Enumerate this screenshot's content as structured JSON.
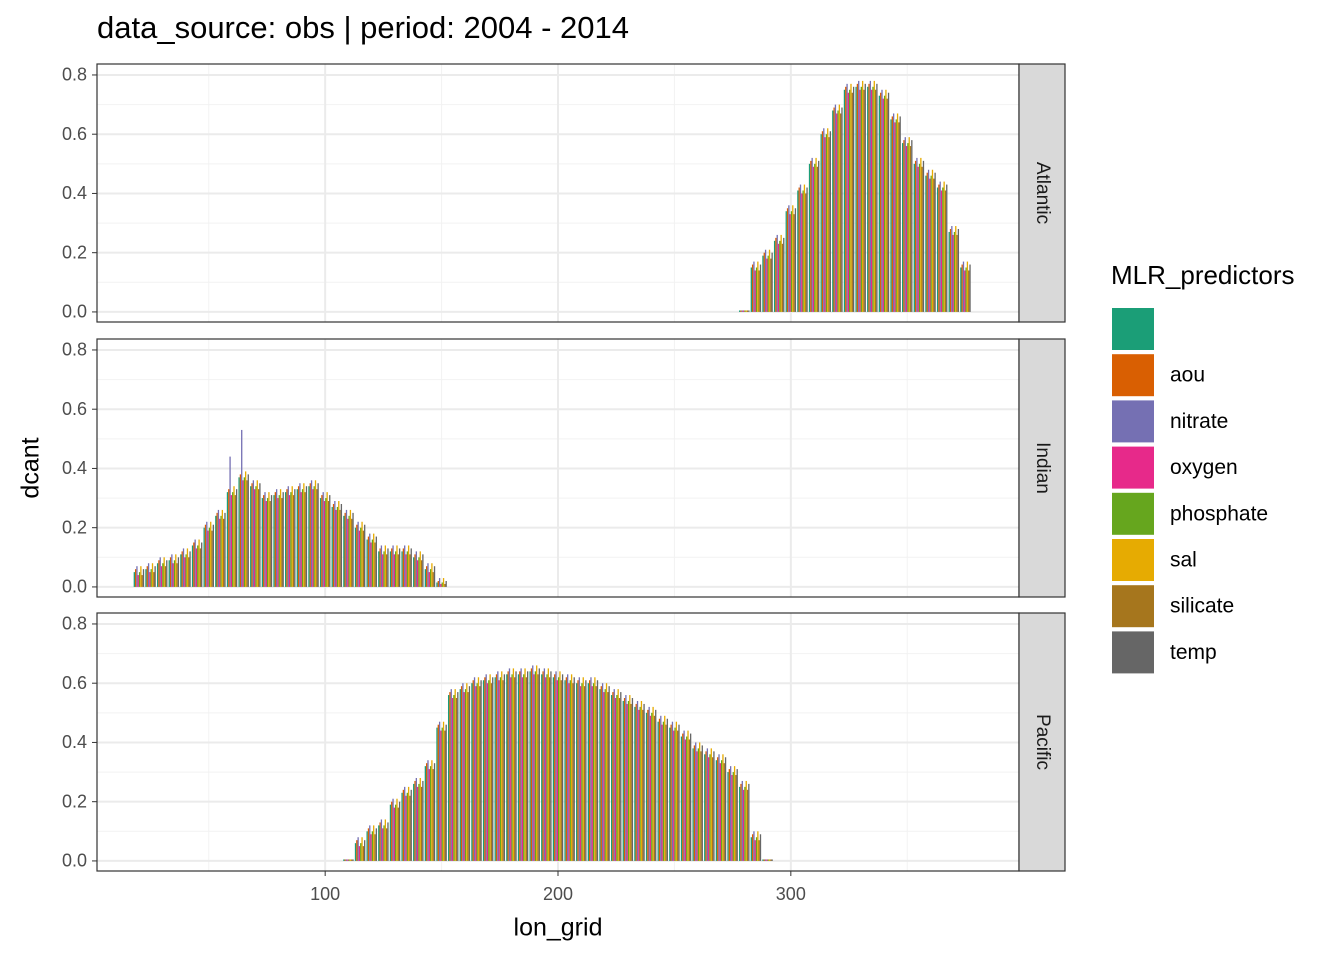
{
  "chart_data": {
    "type": "bar",
    "title": "data_source: obs | period: 2004 - 2014",
    "x_label": "lon_grid",
    "y_label": "dcant",
    "legend_title": "MLR_predictors",
    "xlim": [
      2,
      398
    ],
    "xticks": [
      100,
      200,
      300
    ],
    "ylim": [
      -0.034,
      0.837
    ],
    "yticks": [
      {
        "value": 0,
        "label": "0.0"
      },
      0.2,
      0.4,
      0.6,
      0.8
    ],
    "grid": true,
    "series": [
      {
        "name": null,
        "color": "#1b9e77"
      },
      {
        "name": "aou",
        "color": "#d95f02"
      },
      {
        "name": "nitrate",
        "color": "#7570b3"
      },
      {
        "name": "oxygen",
        "color": "#e7298a"
      },
      {
        "name": "phosphate",
        "color": "#66a61e"
      },
      {
        "name": "sal",
        "color": "#e6ab02"
      },
      {
        "name": "silicate",
        "color": "#a6761d"
      },
      {
        "name": "temp",
        "color": "#666666"
      }
    ],
    "facets": [
      {
        "label": "Atlantic",
        "x": [
          280,
          285,
          290,
          295,
          300,
          305,
          310,
          315,
          320,
          325,
          330,
          335,
          340,
          345,
          350,
          355,
          360,
          365,
          370,
          375
        ],
        "values": [
          [
            0.005,
            0.15,
            0.19,
            0.24,
            0.34,
            0.41,
            0.5,
            0.6,
            0.68,
            0.75,
            0.76,
            0.76,
            0.73,
            0.65,
            0.57,
            0.5,
            0.46,
            0.42,
            0.27,
            0.15
          ],
          [
            0.005,
            0.16,
            0.2,
            0.25,
            0.35,
            0.42,
            0.51,
            0.61,
            0.69,
            0.76,
            0.77,
            0.77,
            0.74,
            0.66,
            0.58,
            0.51,
            0.47,
            0.43,
            0.28,
            0.16
          ],
          [
            0.005,
            0.17,
            0.21,
            0.26,
            0.36,
            0.43,
            0.52,
            0.62,
            0.7,
            0.77,
            0.78,
            0.78,
            0.75,
            0.67,
            0.59,
            0.52,
            0.48,
            0.44,
            0.29,
            0.17
          ],
          [
            0.005,
            0.14,
            0.18,
            0.23,
            0.33,
            0.4,
            0.49,
            0.59,
            0.67,
            0.74,
            0.75,
            0.75,
            0.72,
            0.64,
            0.56,
            0.49,
            0.45,
            0.41,
            0.26,
            0.14
          ],
          [
            0.005,
            0.15,
            0.19,
            0.24,
            0.34,
            0.41,
            0.5,
            0.6,
            0.68,
            0.75,
            0.76,
            0.76,
            0.73,
            0.65,
            0.57,
            0.5,
            0.46,
            0.42,
            0.27,
            0.15
          ],
          [
            0.005,
            0.17,
            0.21,
            0.26,
            0.36,
            0.43,
            0.52,
            0.62,
            0.7,
            0.77,
            0.78,
            0.78,
            0.75,
            0.67,
            0.59,
            0.52,
            0.48,
            0.44,
            0.29,
            0.17
          ],
          [
            0.005,
            0.14,
            0.18,
            0.23,
            0.33,
            0.4,
            0.49,
            0.59,
            0.67,
            0.74,
            0.75,
            0.75,
            0.72,
            0.64,
            0.56,
            0.49,
            0.45,
            0.41,
            0.26,
            0.14
          ],
          [
            0.005,
            0.16,
            0.2,
            0.25,
            0.35,
            0.42,
            0.51,
            0.61,
            0.69,
            0.76,
            0.77,
            0.77,
            0.74,
            0.66,
            0.58,
            0.51,
            0.47,
            0.43,
            0.28,
            0.16
          ]
        ]
      },
      {
        "label": "Indian",
        "x": [
          20,
          25,
          30,
          35,
          40,
          45,
          50,
          55,
          60,
          65,
          70,
          75,
          80,
          85,
          90,
          95,
          100,
          105,
          110,
          115,
          120,
          125,
          130,
          135,
          140,
          145,
          150
        ],
        "values": [
          [
            0.05,
            0.06,
            0.08,
            0.09,
            0.11,
            0.14,
            0.2,
            0.24,
            0.32,
            0.37,
            0.34,
            0.3,
            0.31,
            0.32,
            0.33,
            0.34,
            0.3,
            0.27,
            0.24,
            0.2,
            0.16,
            0.12,
            0.12,
            0.12,
            0.1,
            0.06,
            0.015
          ],
          [
            0.06,
            0.07,
            0.09,
            0.1,
            0.12,
            0.15,
            0.21,
            0.25,
            0.33,
            0.38,
            0.35,
            0.31,
            0.32,
            0.33,
            0.34,
            0.35,
            0.31,
            0.28,
            0.25,
            0.21,
            0.17,
            0.13,
            0.13,
            0.13,
            0.11,
            0.07,
            0.02
          ],
          [
            0.07,
            0.08,
            0.1,
            0.11,
            0.13,
            0.16,
            0.22,
            0.26,
            0.44,
            0.53,
            0.36,
            0.32,
            0.33,
            0.34,
            0.35,
            0.36,
            0.32,
            0.29,
            0.26,
            0.22,
            0.18,
            0.14,
            0.14,
            0.14,
            0.12,
            0.08,
            0.03
          ],
          [
            0.04,
            0.05,
            0.07,
            0.08,
            0.1,
            0.13,
            0.19,
            0.23,
            0.31,
            0.36,
            0.33,
            0.29,
            0.3,
            0.31,
            0.32,
            0.33,
            0.29,
            0.26,
            0.23,
            0.19,
            0.15,
            0.11,
            0.11,
            0.11,
            0.09,
            0.05,
            0.01
          ],
          [
            0.05,
            0.06,
            0.08,
            0.09,
            0.11,
            0.14,
            0.2,
            0.24,
            0.32,
            0.37,
            0.34,
            0.3,
            0.31,
            0.32,
            0.33,
            0.34,
            0.3,
            0.27,
            0.24,
            0.2,
            0.16,
            0.12,
            0.12,
            0.12,
            0.1,
            0.06,
            0.015
          ],
          [
            0.07,
            0.08,
            0.1,
            0.11,
            0.13,
            0.16,
            0.22,
            0.26,
            0.34,
            0.39,
            0.36,
            0.32,
            0.33,
            0.34,
            0.35,
            0.36,
            0.32,
            0.29,
            0.26,
            0.22,
            0.18,
            0.14,
            0.14,
            0.14,
            0.12,
            0.08,
            0.03
          ],
          [
            0.04,
            0.05,
            0.07,
            0.08,
            0.1,
            0.13,
            0.19,
            0.23,
            0.31,
            0.36,
            0.33,
            0.29,
            0.3,
            0.31,
            0.32,
            0.33,
            0.29,
            0.26,
            0.23,
            0.19,
            0.15,
            0.11,
            0.11,
            0.11,
            0.09,
            0.05,
            0.01
          ],
          [
            0.06,
            0.07,
            0.09,
            0.1,
            0.12,
            0.15,
            0.21,
            0.25,
            0.33,
            0.38,
            0.35,
            0.31,
            0.32,
            0.33,
            0.34,
            0.35,
            0.31,
            0.28,
            0.25,
            0.21,
            0.17,
            0.13,
            0.13,
            0.13,
            0.11,
            0.07,
            0.02
          ]
        ]
      },
      {
        "label": "Pacific",
        "x": [
          110,
          115,
          120,
          125,
          130,
          135,
          140,
          145,
          150,
          155,
          160,
          165,
          170,
          175,
          180,
          185,
          190,
          195,
          200,
          205,
          210,
          215,
          220,
          225,
          230,
          235,
          240,
          245,
          250,
          255,
          260,
          265,
          270,
          275,
          280,
          285,
          290
        ],
        "values": [
          [
            0.005,
            0.06,
            0.1,
            0.12,
            0.19,
            0.23,
            0.26,
            0.32,
            0.45,
            0.56,
            0.58,
            0.6,
            0.61,
            0.62,
            0.63,
            0.63,
            0.64,
            0.63,
            0.62,
            0.61,
            0.6,
            0.6,
            0.58,
            0.56,
            0.54,
            0.52,
            0.5,
            0.47,
            0.45,
            0.42,
            0.38,
            0.36,
            0.34,
            0.3,
            0.25,
            0.08,
            0.005
          ],
          [
            0.005,
            0.07,
            0.11,
            0.13,
            0.2,
            0.24,
            0.27,
            0.33,
            0.46,
            0.57,
            0.59,
            0.61,
            0.62,
            0.63,
            0.64,
            0.64,
            0.65,
            0.64,
            0.63,
            0.62,
            0.61,
            0.61,
            0.59,
            0.57,
            0.55,
            0.53,
            0.51,
            0.48,
            0.46,
            0.43,
            0.39,
            0.37,
            0.35,
            0.31,
            0.26,
            0.09,
            0.005
          ],
          [
            0.005,
            0.08,
            0.12,
            0.14,
            0.21,
            0.25,
            0.28,
            0.34,
            0.47,
            0.58,
            0.6,
            0.62,
            0.63,
            0.64,
            0.65,
            0.65,
            0.66,
            0.65,
            0.64,
            0.63,
            0.62,
            0.62,
            0.6,
            0.58,
            0.56,
            0.54,
            0.52,
            0.49,
            0.47,
            0.44,
            0.4,
            0.38,
            0.36,
            0.32,
            0.27,
            0.1,
            0.005
          ],
          [
            0.005,
            0.05,
            0.09,
            0.11,
            0.18,
            0.22,
            0.25,
            0.31,
            0.44,
            0.55,
            0.57,
            0.59,
            0.6,
            0.61,
            0.62,
            0.62,
            0.63,
            0.62,
            0.61,
            0.6,
            0.59,
            0.59,
            0.57,
            0.55,
            0.53,
            0.51,
            0.49,
            0.46,
            0.44,
            0.41,
            0.37,
            0.35,
            0.33,
            0.29,
            0.24,
            0.07,
            0.005
          ],
          [
            0.005,
            0.06,
            0.1,
            0.12,
            0.19,
            0.23,
            0.26,
            0.32,
            0.45,
            0.56,
            0.58,
            0.6,
            0.61,
            0.62,
            0.63,
            0.63,
            0.64,
            0.63,
            0.62,
            0.61,
            0.6,
            0.6,
            0.58,
            0.56,
            0.54,
            0.52,
            0.5,
            0.47,
            0.45,
            0.42,
            0.38,
            0.36,
            0.34,
            0.3,
            0.25,
            0.08,
            0.005
          ],
          [
            0.005,
            0.08,
            0.12,
            0.14,
            0.21,
            0.25,
            0.28,
            0.34,
            0.47,
            0.58,
            0.6,
            0.62,
            0.63,
            0.64,
            0.65,
            0.65,
            0.66,
            0.65,
            0.64,
            0.63,
            0.62,
            0.62,
            0.6,
            0.58,
            0.56,
            0.54,
            0.52,
            0.49,
            0.47,
            0.44,
            0.4,
            0.38,
            0.36,
            0.32,
            0.27,
            0.1,
            0.005
          ],
          [
            0.005,
            0.05,
            0.09,
            0.11,
            0.18,
            0.22,
            0.25,
            0.31,
            0.44,
            0.55,
            0.57,
            0.59,
            0.6,
            0.61,
            0.62,
            0.62,
            0.63,
            0.62,
            0.61,
            0.6,
            0.59,
            0.59,
            0.57,
            0.55,
            0.53,
            0.51,
            0.49,
            0.46,
            0.44,
            0.41,
            0.37,
            0.35,
            0.33,
            0.29,
            0.24,
            0.07,
            0.005
          ],
          [
            0.005,
            0.07,
            0.11,
            0.13,
            0.2,
            0.24,
            0.27,
            0.33,
            0.46,
            0.57,
            0.59,
            0.61,
            0.62,
            0.63,
            0.64,
            0.64,
            0.65,
            0.64,
            0.63,
            0.62,
            0.61,
            0.61,
            0.59,
            0.57,
            0.55,
            0.53,
            0.51,
            0.48,
            0.46,
            0.43,
            0.39,
            0.37,
            0.35,
            0.31,
            0.26,
            0.09,
            0.005
          ]
        ]
      }
    ]
  }
}
